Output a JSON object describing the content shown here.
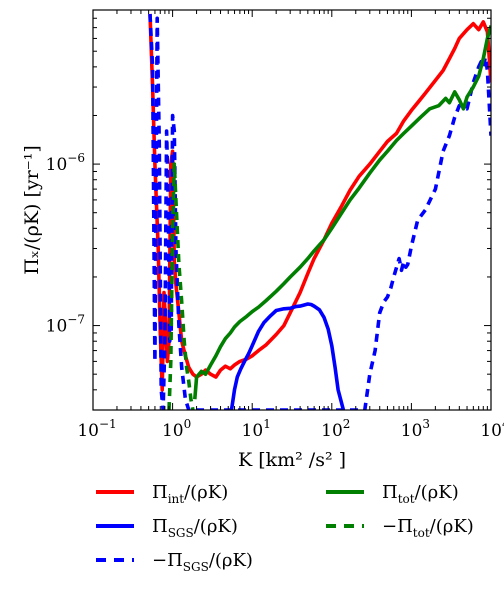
{
  "chart_data": {
    "type": "line",
    "xlabel": "K [km² /s² ]",
    "ylabel": "Πₓ/(ρK) [yr⁻¹]",
    "x_scale": "log",
    "y_scale": "log",
    "xlim": [
      0.1,
      10000
    ],
    "ylim": [
      3e-08,
      9e-06
    ],
    "grid": false,
    "legend_position": "below",
    "x_ticks": [
      {
        "value": 0.1,
        "base": "10",
        "exp": "−1"
      },
      {
        "value": 1,
        "base": "10",
        "exp": "0"
      },
      {
        "value": 10,
        "base": "10",
        "exp": "1"
      },
      {
        "value": 100,
        "base": "10",
        "exp": "2"
      },
      {
        "value": 1000,
        "base": "10",
        "exp": "3"
      },
      {
        "value": 10000,
        "base": "10",
        "exp": "4"
      }
    ],
    "y_ticks": [
      {
        "value": 1e-07,
        "base": "10",
        "exp": "−7"
      },
      {
        "value": 1e-06,
        "base": "10",
        "exp": "−6"
      }
    ],
    "series": [
      {
        "name": "Πint/(ρK)",
        "color": "#ff0000",
        "style": "solid",
        "x": [
          0.52,
          0.56,
          0.6,
          0.66,
          0.7,
          0.74,
          0.78,
          0.82,
          0.86,
          0.9,
          0.95,
          1.0,
          1.05,
          1.1,
          1.18,
          1.3,
          1.45,
          1.6,
          1.8,
          2.0,
          2.3,
          2.6,
          3.0,
          3.5,
          4.0,
          4.6,
          5.3,
          6.0,
          7.0,
          8.5,
          10,
          12,
          15,
          20,
          25,
          30,
          40,
          50,
          60,
          80,
          100,
          130,
          170,
          220,
          300,
          400,
          500,
          650,
          800,
          1000,
          1200,
          1500,
          2000,
          2500,
          3000,
          3500,
          4000,
          5000,
          6000,
          7000,
          8000,
          9000,
          10000
        ],
        "y": [
          8.5e-06,
          3e-06,
          1e-06,
          3e-07,
          9e-08,
          4e-08,
          1.6e-07,
          1e-07,
          6e-08,
          8e-08,
          1e-06,
          1.2e-06,
          2.5e-07,
          1.8e-07,
          1.3e-07,
          8e-08,
          6.5e-08,
          5.5e-08,
          5e-08,
          4.8e-08,
          5e-08,
          5.3e-08,
          5e-08,
          4.8e-08,
          5.3e-08,
          5.6e-08,
          5.4e-08,
          5.7e-08,
          6e-08,
          6.2e-08,
          6.5e-08,
          7e-08,
          7.6e-08,
          8.8e-08,
          1e-07,
          1.2e-07,
          1.6e-07,
          2.1e-07,
          2.6e-07,
          3.4e-07,
          4.3e-07,
          5.4e-07,
          6.9e-07,
          8.4e-07,
          1e-06,
          1.2e-06,
          1.38e-06,
          1.55e-06,
          1.85e-06,
          2.15e-06,
          2.4e-06,
          2.75e-06,
          3.3e-06,
          3.8e-06,
          4.5e-06,
          5.2e-06,
          6e-06,
          6.8e-06,
          7.4e-06,
          6.8e-06,
          7.6e-06,
          6.6e-06,
          3.2e-06
        ]
      },
      {
        "name": "ΠSGS/(ρK)",
        "color": "#0000ff",
        "style": "solid",
        "x": [
          5.5,
          6.0,
          6.5,
          7.2,
          8.0,
          9.0,
          10,
          12,
          14,
          17,
          20,
          25,
          30,
          35,
          40,
          45,
          50,
          55,
          60,
          70,
          80,
          90,
          100,
          110,
          120,
          140
        ],
        "y": [
          3e-08,
          4e-08,
          4.8e-08,
          5.4e-08,
          6e-08,
          6.7e-08,
          7.5e-08,
          9.2e-08,
          1.04e-07,
          1.15e-07,
          1.24e-07,
          1.27e-07,
          1.28e-07,
          1.31e-07,
          1.32e-07,
          1.34e-07,
          1.36e-07,
          1.35e-07,
          1.32e-07,
          1.25e-07,
          1.12e-07,
          9.5e-08,
          7.5e-08,
          5.5e-08,
          4e-08,
          3e-08
        ]
      },
      {
        "name": "−ΠSGS/(ρK)",
        "color": "#0000ff",
        "style": "dashed",
        "x": [
          0.52,
          0.56,
          0.6,
          0.64,
          0.68,
          0.72,
          0.76,
          0.8,
          0.84,
          0.88,
          0.92,
          0.96,
          1.0,
          1.05,
          1.1,
          1.2,
          1.3,
          1.45,
          1.6,
          260,
          300,
          350,
          400,
          450,
          500,
          550,
          600,
          700,
          750,
          800,
          850,
          900,
          1000,
          1200,
          1500,
          2000,
          2500,
          3000,
          3500,
          4000,
          5000,
          6000,
          7000,
          7500,
          8000,
          8500,
          9000,
          10000
        ],
        "y": [
          8.5e-06,
          4e-06,
          6e-08,
          8e-06,
          1.3e-06,
          4e-08,
          3e-08,
          8e-08,
          1.6e-06,
          6e-07,
          8e-08,
          9e-08,
          2e-06,
          1.6e-06,
          3e-07,
          1e-07,
          5.5e-08,
          3.5e-08,
          3e-08,
          3e-08,
          5e-08,
          7e-08,
          1.2e-07,
          1.4e-07,
          1.5e-07,
          1.7e-07,
          2e-07,
          2.6e-07,
          2.2e-07,
          2.5e-07,
          2.3e-07,
          2.4e-07,
          3.1e-07,
          4.5e-07,
          5.2e-07,
          7e-07,
          1.2e-06,
          1.5e-06,
          1.95e-06,
          2.3e-06,
          2.2e-06,
          3.2e-06,
          4e-06,
          4.3e-06,
          4e-06,
          4.6e-06,
          3.8e-06,
          1.5e-06
        ]
      },
      {
        "name": "Πtot/(ρK)",
        "color": "#007f00",
        "style": "solid",
        "x": [
          1.9,
          2.0,
          2.3,
          2.6,
          3.0,
          3.5,
          4.0,
          4.6,
          5.3,
          6.0,
          7.0,
          8.5,
          10,
          12,
          15,
          20,
          25,
          30,
          40,
          50,
          60,
          80,
          100,
          130,
          170,
          220,
          300,
          400,
          500,
          650,
          800,
          1000,
          1300,
          1700,
          2200,
          2700,
          3000,
          3500,
          4000,
          4500,
          5000,
          6000,
          7000,
          8000,
          9000,
          10000
        ],
        "y": [
          3.5e-08,
          4.8e-08,
          5.2e-08,
          5e-08,
          5.7e-08,
          6.5e-08,
          7.4e-08,
          8.3e-08,
          9e-08,
          9.8e-08,
          1.06e-07,
          1.14e-07,
          1.22e-07,
          1.3e-07,
          1.43e-07,
          1.63e-07,
          1.82e-07,
          2e-07,
          2.3e-07,
          2.6e-07,
          2.9e-07,
          3.4e-07,
          4e-07,
          4.9e-07,
          6e-07,
          7.1e-07,
          8.8e-07,
          1.06e-06,
          1.2e-06,
          1.4e-06,
          1.55e-06,
          1.72e-06,
          1.95e-06,
          2.2e-06,
          2.3e-06,
          2.55e-06,
          2.4e-06,
          2.8e-06,
          2.5e-06,
          2.2e-06,
          2.6e-06,
          3e-06,
          3.5e-06,
          4.5e-06,
          6e-06,
          7.2e-06
        ]
      },
      {
        "name": "−Πtot/(ρK)",
        "color": "#007f00",
        "style": "dashed",
        "x": [
          0.9,
          0.95,
          1.0,
          1.05,
          1.1,
          1.2,
          1.3,
          1.4,
          1.5,
          1.6,
          1.7,
          1.8
        ],
        "y": [
          3e-08,
          6e-08,
          4e-07,
          1e-06,
          6e-07,
          2.4e-07,
          1.4e-07,
          8e-08,
          5.5e-08,
          4.5e-08,
          3.5e-08,
          3e-08
        ]
      }
    ],
    "legend": {
      "items": [
        {
          "base": "Π",
          "sub": "int",
          "tail": "/(ρK)",
          "prefix": "",
          "color": "#ff0000",
          "style": "solid"
        },
        {
          "base": "Π",
          "sub": "tot",
          "tail": "/(ρK)",
          "prefix": "",
          "color": "#007f00",
          "style": "solid"
        },
        {
          "base": "Π",
          "sub": "SGS",
          "tail": "/(ρK)",
          "prefix": "",
          "color": "#0000ff",
          "style": "solid"
        },
        {
          "base": "Π",
          "sub": "tot",
          "tail": "/(ρK)",
          "prefix": "−",
          "color": "#007f00",
          "style": "dashed"
        },
        {
          "base": "Π",
          "sub": "SGS",
          "tail": "/(ρK)",
          "prefix": "−",
          "color": "#0000ff",
          "style": "dashed"
        }
      ]
    }
  }
}
